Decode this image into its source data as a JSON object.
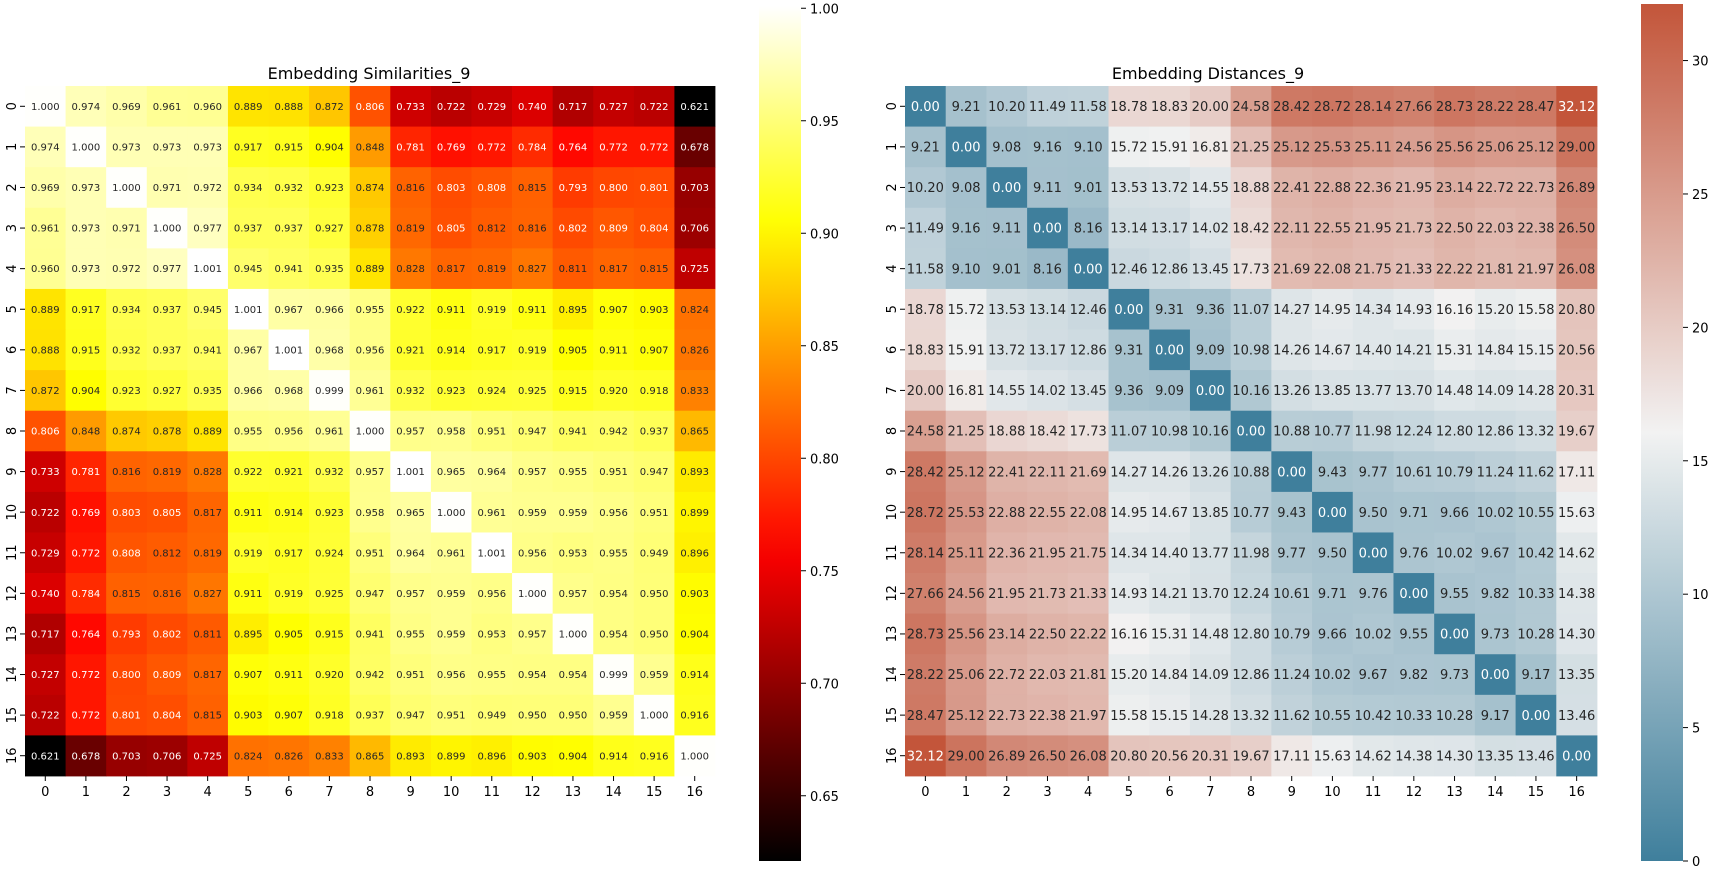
{
  "chart_data": [
    {
      "type": "heatmap",
      "title": "Embedding Similarities_9",
      "colormap": "hot",
      "xlabel": "",
      "ylabel": "",
      "x_tick_labels": [
        "0",
        "1",
        "2",
        "3",
        "4",
        "5",
        "6",
        "7",
        "8",
        "9",
        "10",
        "11",
        "12",
        "13",
        "14",
        "15",
        "16"
      ],
      "y_tick_labels": [
        "0",
        "1",
        "2",
        "3",
        "4",
        "5",
        "6",
        "7",
        "8",
        "9",
        "10",
        "11",
        "12",
        "13",
        "14",
        "15",
        "16"
      ],
      "value_range": [
        0.621,
        1.001
      ],
      "colorbar_ticks": [
        "0.65",
        "0.70",
        "0.75",
        "0.80",
        "0.85",
        "0.90",
        "0.95",
        "1.00"
      ],
      "matrix": [
        [
          "1.000",
          "0.974",
          "0.969",
          "0.961",
          "0.960",
          "0.889",
          "0.888",
          "0.872",
          "0.806",
          "0.733",
          "0.722",
          "0.729",
          "0.740",
          "0.717",
          "0.727",
          "0.722",
          "0.621"
        ],
        [
          "0.974",
          "1.000",
          "0.973",
          "0.973",
          "0.973",
          "0.917",
          "0.915",
          "0.904",
          "0.848",
          "0.781",
          "0.769",
          "0.772",
          "0.784",
          "0.764",
          "0.772",
          "0.772",
          "0.678"
        ],
        [
          "0.969",
          "0.973",
          "1.000",
          "0.971",
          "0.972",
          "0.934",
          "0.932",
          "0.923",
          "0.874",
          "0.816",
          "0.803",
          "0.808",
          "0.815",
          "0.793",
          "0.800",
          "0.801",
          "0.703"
        ],
        [
          "0.961",
          "0.973",
          "0.971",
          "1.000",
          "0.977",
          "0.937",
          "0.937",
          "0.927",
          "0.878",
          "0.819",
          "0.805",
          "0.812",
          "0.816",
          "0.802",
          "0.809",
          "0.804",
          "0.706"
        ],
        [
          "0.960",
          "0.973",
          "0.972",
          "0.977",
          "1.001",
          "0.945",
          "0.941",
          "0.935",
          "0.889",
          "0.828",
          "0.817",
          "0.819",
          "0.827",
          "0.811",
          "0.817",
          "0.815",
          "0.725"
        ],
        [
          "0.889",
          "0.917",
          "0.934",
          "0.937",
          "0.945",
          "1.001",
          "0.967",
          "0.966",
          "0.955",
          "0.922",
          "0.911",
          "0.919",
          "0.911",
          "0.895",
          "0.907",
          "0.903",
          "0.824"
        ],
        [
          "0.888",
          "0.915",
          "0.932",
          "0.937",
          "0.941",
          "0.967",
          "1.001",
          "0.968",
          "0.956",
          "0.921",
          "0.914",
          "0.917",
          "0.919",
          "0.905",
          "0.911",
          "0.907",
          "0.826"
        ],
        [
          "0.872",
          "0.904",
          "0.923",
          "0.927",
          "0.935",
          "0.966",
          "0.968",
          "0.999",
          "0.961",
          "0.932",
          "0.923",
          "0.924",
          "0.925",
          "0.915",
          "0.920",
          "0.918",
          "0.833"
        ],
        [
          "0.806",
          "0.848",
          "0.874",
          "0.878",
          "0.889",
          "0.955",
          "0.956",
          "0.961",
          "1.000",
          "0.957",
          "0.958",
          "0.951",
          "0.947",
          "0.941",
          "0.942",
          "0.937",
          "0.865"
        ],
        [
          "0.733",
          "0.781",
          "0.816",
          "0.819",
          "0.828",
          "0.922",
          "0.921",
          "0.932",
          "0.957",
          "1.001",
          "0.965",
          "0.964",
          "0.957",
          "0.955",
          "0.951",
          "0.947",
          "0.893"
        ],
        [
          "0.722",
          "0.769",
          "0.803",
          "0.805",
          "0.817",
          "0.911",
          "0.914",
          "0.923",
          "0.958",
          "0.965",
          "1.000",
          "0.961",
          "0.959",
          "0.959",
          "0.956",
          "0.951",
          "0.899"
        ],
        [
          "0.729",
          "0.772",
          "0.808",
          "0.812",
          "0.819",
          "0.919",
          "0.917",
          "0.924",
          "0.951",
          "0.964",
          "0.961",
          "1.001",
          "0.956",
          "0.953",
          "0.955",
          "0.949",
          "0.896"
        ],
        [
          "0.740",
          "0.784",
          "0.815",
          "0.816",
          "0.827",
          "0.911",
          "0.919",
          "0.925",
          "0.947",
          "0.957",
          "0.959",
          "0.956",
          "1.000",
          "0.957",
          "0.954",
          "0.950",
          "0.903"
        ],
        [
          "0.717",
          "0.764",
          "0.793",
          "0.802",
          "0.811",
          "0.895",
          "0.905",
          "0.915",
          "0.941",
          "0.955",
          "0.959",
          "0.953",
          "0.957",
          "1.000",
          "0.954",
          "0.950",
          "0.904"
        ],
        [
          "0.727",
          "0.772",
          "0.800",
          "0.809",
          "0.817",
          "0.907",
          "0.911",
          "0.920",
          "0.942",
          "0.951",
          "0.956",
          "0.955",
          "0.954",
          "0.954",
          "0.999",
          "0.959",
          "0.914"
        ],
        [
          "0.722",
          "0.772",
          "0.801",
          "0.804",
          "0.815",
          "0.903",
          "0.907",
          "0.918",
          "0.937",
          "0.947",
          "0.951",
          "0.949",
          "0.950",
          "0.950",
          "0.959",
          "1.000",
          "0.916"
        ],
        [
          "0.621",
          "0.678",
          "0.703",
          "0.706",
          "0.725",
          "0.824",
          "0.826",
          "0.833",
          "0.865",
          "0.893",
          "0.899",
          "0.896",
          "0.903",
          "0.904",
          "0.914",
          "0.916",
          "1.000"
        ]
      ]
    },
    {
      "type": "heatmap",
      "title": "Embedding Distances_9",
      "colormap": "diverging blue-white-red",
      "colors": {
        "low": "#3f7f9c",
        "mid": "#f2f2f2",
        "high": "#c3553a"
      },
      "xlabel": "",
      "ylabel": "",
      "x_tick_labels": [
        "0",
        "1",
        "2",
        "3",
        "4",
        "5",
        "6",
        "7",
        "8",
        "9",
        "10",
        "11",
        "12",
        "13",
        "14",
        "15",
        "16"
      ],
      "y_tick_labels": [
        "0",
        "1",
        "2",
        "3",
        "4",
        "5",
        "6",
        "7",
        "8",
        "9",
        "10",
        "11",
        "12",
        "13",
        "14",
        "15",
        "16"
      ],
      "value_range": [
        0,
        32.12
      ],
      "colorbar_ticks": [
        "0",
        "5",
        "10",
        "15",
        "20",
        "25",
        "30"
      ],
      "matrix": [
        [
          "0.00",
          "9.21",
          "10.20",
          "11.49",
          "11.58",
          "18.78",
          "18.83",
          "20.00",
          "24.58",
          "28.42",
          "28.72",
          "28.14",
          "27.66",
          "28.73",
          "28.22",
          "28.47",
          "32.12"
        ],
        [
          "9.21",
          "0.00",
          "9.08",
          "9.16",
          "9.10",
          "15.72",
          "15.91",
          "16.81",
          "21.25",
          "25.12",
          "25.53",
          "25.11",
          "24.56",
          "25.56",
          "25.06",
          "25.12",
          "29.00"
        ],
        [
          "10.20",
          "9.08",
          "0.00",
          "9.11",
          "9.01",
          "13.53",
          "13.72",
          "14.55",
          "18.88",
          "22.41",
          "22.88",
          "22.36",
          "21.95",
          "23.14",
          "22.72",
          "22.73",
          "26.89"
        ],
        [
          "11.49",
          "9.16",
          "9.11",
          "0.00",
          "8.16",
          "13.14",
          "13.17",
          "14.02",
          "18.42",
          "22.11",
          "22.55",
          "21.95",
          "21.73",
          "22.50",
          "22.03",
          "22.38",
          "26.50"
        ],
        [
          "11.58",
          "9.10",
          "9.01",
          "8.16",
          "0.00",
          "12.46",
          "12.86",
          "13.45",
          "17.73",
          "21.69",
          "22.08",
          "21.75",
          "21.33",
          "22.22",
          "21.81",
          "21.97",
          "26.08"
        ],
        [
          "18.78",
          "15.72",
          "13.53",
          "13.14",
          "12.46",
          "0.00",
          "9.31",
          "9.36",
          "11.07",
          "14.27",
          "14.95",
          "14.34",
          "14.93",
          "16.16",
          "15.20",
          "15.58",
          "20.80"
        ],
        [
          "18.83",
          "15.91",
          "13.72",
          "13.17",
          "12.86",
          "9.31",
          "0.00",
          "9.09",
          "10.98",
          "14.26",
          "14.67",
          "14.40",
          "14.21",
          "15.31",
          "14.84",
          "15.15",
          "20.56"
        ],
        [
          "20.00",
          "16.81",
          "14.55",
          "14.02",
          "13.45",
          "9.36",
          "9.09",
          "0.00",
          "10.16",
          "13.26",
          "13.85",
          "13.77",
          "13.70",
          "14.48",
          "14.09",
          "14.28",
          "20.31"
        ],
        [
          "24.58",
          "21.25",
          "18.88",
          "18.42",
          "17.73",
          "11.07",
          "10.98",
          "10.16",
          "0.00",
          "10.88",
          "10.77",
          "11.98",
          "12.24",
          "12.80",
          "12.86",
          "13.32",
          "19.67"
        ],
        [
          "28.42",
          "25.12",
          "22.41",
          "22.11",
          "21.69",
          "14.27",
          "14.26",
          "13.26",
          "10.88",
          "0.00",
          "9.43",
          "9.77",
          "10.61",
          "10.79",
          "11.24",
          "11.62",
          "17.11"
        ],
        [
          "28.72",
          "25.53",
          "22.88",
          "22.55",
          "22.08",
          "14.95",
          "14.67",
          "13.85",
          "10.77",
          "9.43",
          "0.00",
          "9.50",
          "9.71",
          "9.66",
          "10.02",
          "10.55",
          "15.63"
        ],
        [
          "28.14",
          "25.11",
          "22.36",
          "21.95",
          "21.75",
          "14.34",
          "14.40",
          "13.77",
          "11.98",
          "9.77",
          "9.50",
          "0.00",
          "9.76",
          "10.02",
          "9.67",
          "10.42",
          "14.62"
        ],
        [
          "27.66",
          "24.56",
          "21.95",
          "21.73",
          "21.33",
          "14.93",
          "14.21",
          "13.70",
          "12.24",
          "10.61",
          "9.71",
          "9.76",
          "0.00",
          "9.55",
          "9.82",
          "10.33",
          "14.38"
        ],
        [
          "28.73",
          "25.56",
          "23.14",
          "22.50",
          "22.22",
          "16.16",
          "15.31",
          "14.48",
          "12.80",
          "10.79",
          "9.66",
          "10.02",
          "9.55",
          "0.00",
          "9.73",
          "10.28",
          "14.30"
        ],
        [
          "28.22",
          "25.06",
          "22.72",
          "22.03",
          "21.81",
          "15.20",
          "14.84",
          "14.09",
          "12.86",
          "11.24",
          "10.02",
          "9.67",
          "9.82",
          "9.73",
          "0.00",
          "9.17",
          "13.35"
        ],
        [
          "28.47",
          "25.12",
          "22.73",
          "22.38",
          "21.97",
          "15.58",
          "15.15",
          "14.28",
          "13.32",
          "11.62",
          "10.55",
          "10.42",
          "10.33",
          "10.28",
          "9.17",
          "0.00",
          "13.46"
        ],
        [
          "32.12",
          "29.00",
          "26.89",
          "26.50",
          "26.08",
          "20.80",
          "20.56",
          "20.31",
          "19.67",
          "17.11",
          "15.63",
          "14.62",
          "14.38",
          "14.30",
          "13.35",
          "13.46",
          "0.00"
        ]
      ]
    }
  ]
}
